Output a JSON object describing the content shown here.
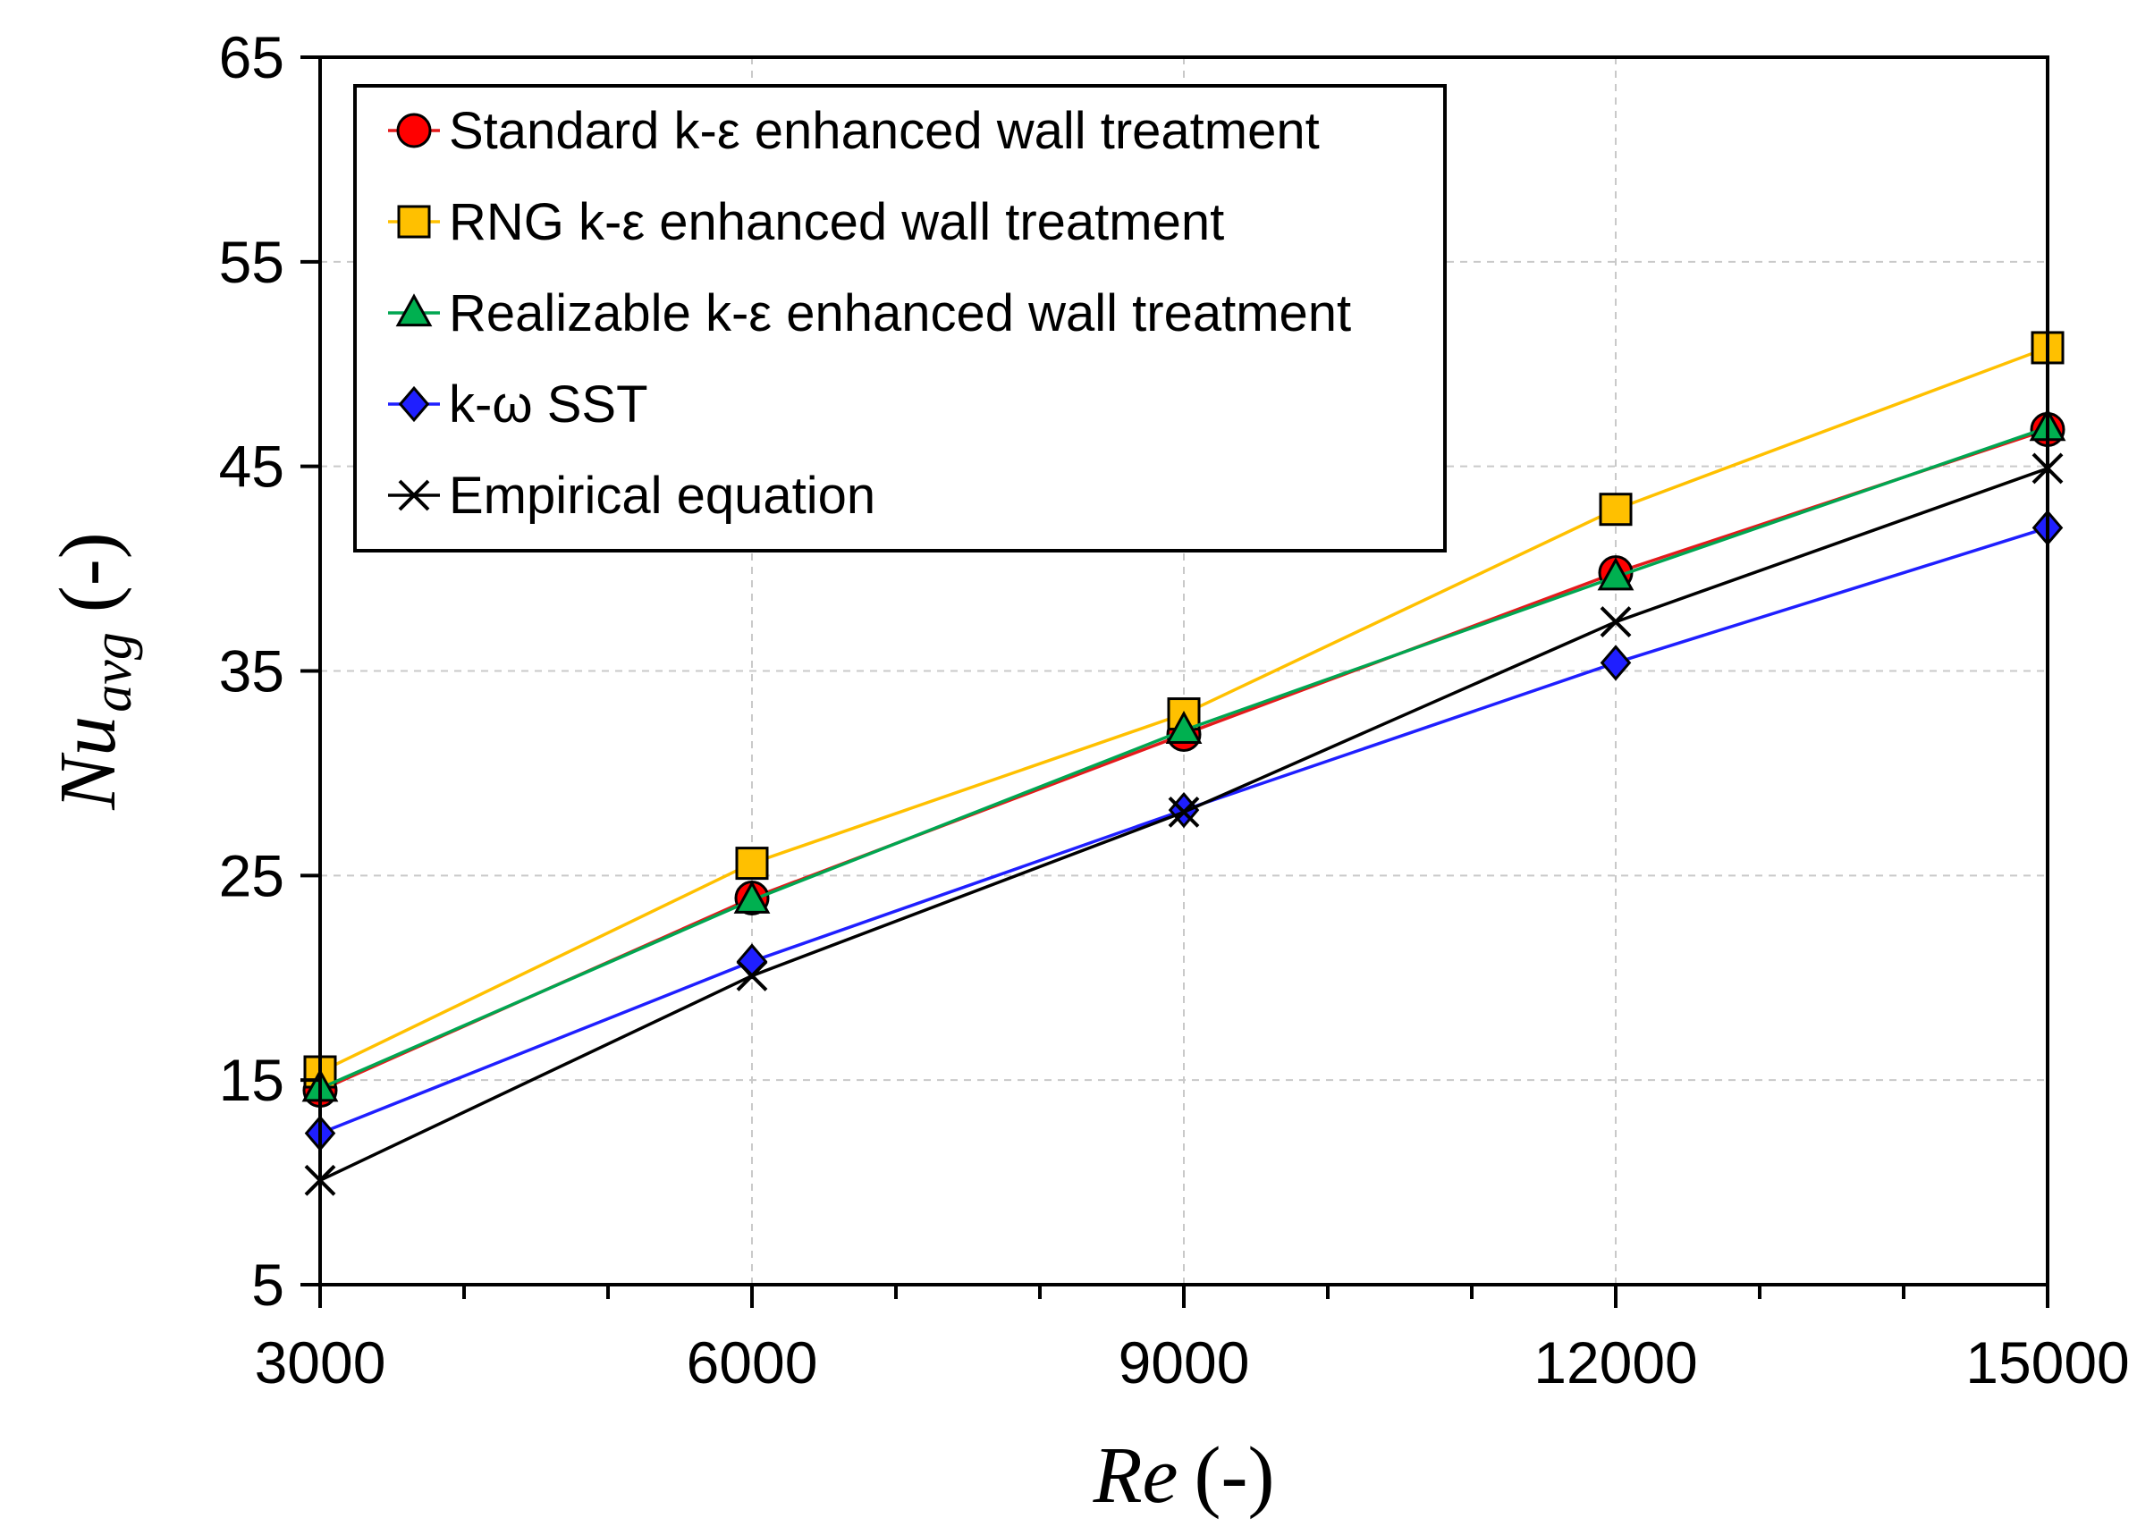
{
  "chart_data": {
    "type": "line",
    "x": [
      3000,
      6000,
      9000,
      12000,
      15000
    ],
    "xlim": [
      3000,
      15000
    ],
    "ylim": [
      5,
      65
    ],
    "x_ticks": [
      "3000",
      "6000",
      "9000",
      "12000",
      "15000"
    ],
    "y_ticks": [
      "5",
      "15",
      "25",
      "35",
      "45",
      "55",
      "65"
    ],
    "x_tick_values": [
      3000,
      6000,
      9000,
      12000,
      15000
    ],
    "y_tick_values": [
      5,
      15,
      25,
      35,
      45,
      55,
      65
    ],
    "x_minor_step": 1000,
    "xlabel": {
      "symbol": "Re",
      "unit": "(-)"
    },
    "ylabel": {
      "symbol": "Nu",
      "subscript": "avg",
      "unit": "(-)"
    },
    "grid": true,
    "legend_position": "top-left",
    "series": [
      {
        "name": "Standard k-ε enhanced wall treatment",
        "color": "#e41a1c",
        "marker": "circle",
        "marker_fill": "#ff0000",
        "values": [
          14.5,
          23.9,
          31.9,
          39.8,
          46.8
        ]
      },
      {
        "name": "RNG k-ε enhanced wall treatment",
        "color": "#ffc000",
        "marker": "square",
        "marker_fill": "#ffc000",
        "values": [
          15.4,
          25.6,
          32.9,
          42.9,
          50.8
        ]
      },
      {
        "name": "Realizable k-ε enhanced wall treatment",
        "color": "#00a651",
        "marker": "triangle",
        "marker_fill": "#00b050",
        "values": [
          14.6,
          23.8,
          32.1,
          39.6,
          46.9
        ]
      },
      {
        "name": "k-ω SST",
        "color": "#1f1fff",
        "marker": "diamond",
        "marker_fill": "#1f1fff",
        "values": [
          12.4,
          20.8,
          28.2,
          35.4,
          42.0
        ]
      },
      {
        "name": "Empirical equation",
        "color": "#000000",
        "marker": "x",
        "marker_fill": "#000000",
        "values": [
          10.1,
          20.1,
          28.1,
          37.4,
          44.9
        ]
      }
    ]
  }
}
